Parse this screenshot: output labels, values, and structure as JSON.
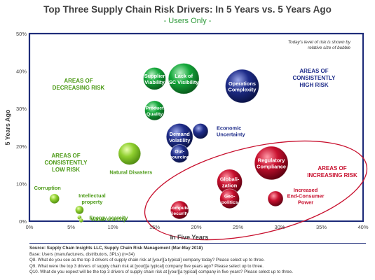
{
  "chart_data": {
    "type": "bubble",
    "title": "Top Three Supply Chain Risk Drivers: In 5 Years vs. 5 Years Ago",
    "subtitle": "- Users Only -",
    "xlabel": "In Five Years",
    "ylabel": "5 Years Ago",
    "xlim": [
      0,
      40
    ],
    "ylim": [
      0,
      50
    ],
    "x_ticks": [
      "0%",
      "5%",
      "10%",
      "15%",
      "20%",
      "25%",
      "30%",
      "35%",
      "40%"
    ],
    "y_ticks": [
      "0%",
      "10%",
      "20%",
      "30%",
      "40%",
      "50%"
    ],
    "grid": false,
    "bubble_note": "Today's level of risk is shown by relative size of bubble",
    "points": [
      {
        "label": "Supplier Viability",
        "x": 15.0,
        "y": 38.0,
        "size": 16,
        "color": "green",
        "label_pos": "inside"
      },
      {
        "label": "Lack of SC Visibility",
        "x": 18.5,
        "y": 38.0,
        "size": 22,
        "color": "green",
        "label_pos": "inside"
      },
      {
        "label": "Product Quality",
        "x": 15.0,
        "y": 29.5,
        "size": 14,
        "color": "green",
        "label_pos": "inside"
      },
      {
        "label": "Operations Complexity",
        "x": 25.5,
        "y": 36.0,
        "size": 24,
        "color": "blue",
        "label_pos": "inside"
      },
      {
        "label": "Demand Volatility",
        "x": 18.0,
        "y": 22.5,
        "size": 19,
        "color": "blue",
        "label_pos": "inside"
      },
      {
        "label": "Out-sourcing",
        "x": 18.0,
        "y": 18.0,
        "size": 13,
        "color": "blue",
        "label_pos": "inside"
      },
      {
        "label": "Economic Uncertainty",
        "x": 20.5,
        "y": 24.0,
        "size": 11,
        "color": "blue",
        "label_pos": "right"
      },
      {
        "label": "Natural Disasters",
        "x": 12.0,
        "y": 18.0,
        "size": 16,
        "color": "lightgreen",
        "label_pos": "below"
      },
      {
        "label": "Corruption",
        "x": 3.0,
        "y": 6.0,
        "size": 7,
        "color": "lightgreen",
        "label_pos": "above-left"
      },
      {
        "label": "Intellectual property",
        "x": 6.0,
        "y": 3.0,
        "size": 6,
        "color": "lightgreen",
        "label_pos": "above-right"
      },
      {
        "label": "Energy scarcity",
        "x": 6.0,
        "y": 1.0,
        "size": 3,
        "color": "lightgreen",
        "label_pos": "right"
      },
      {
        "label": "Water scarcity",
        "x": 6.2,
        "y": 0.2,
        "size": 3,
        "color": "lightgreen",
        "label_pos": "right"
      },
      {
        "label": "Regulatory Compliance",
        "x": 29.0,
        "y": 15.5,
        "size": 24,
        "color": "red",
        "label_pos": "inside"
      },
      {
        "label": "Globalization",
        "x": 24.0,
        "y": 10.5,
        "size": 18,
        "color": "red",
        "label_pos": "inside"
      },
      {
        "label": "Geo-politics",
        "x": 24.0,
        "y": 6.0,
        "size": 14,
        "color": "red",
        "label_pos": "inside"
      },
      {
        "label": "Computer Security",
        "x": 18.0,
        "y": 3.0,
        "size": 13,
        "color": "red",
        "label_pos": "inside"
      },
      {
        "label": "Increased End-Consumer Power",
        "x": 29.5,
        "y": 6.0,
        "size": 11,
        "color": "red",
        "label_pos": "right"
      }
    ],
    "annotations": [
      {
        "text": "AREAS OF DECREASING RISK",
        "color": "green"
      },
      {
        "text": "AREAS OF CONSISTENTLY HIGH RISK",
        "color": "blue"
      },
      {
        "text": "AREAS OF CONSISTENTLY LOW RISK",
        "color": "green"
      },
      {
        "text": "AREAS OF INCREASING RISK",
        "color": "red"
      }
    ],
    "colors": {
      "green": "#14a83a",
      "lightgreen": "#8fcf2f",
      "blue": "#1f2d8a",
      "red": "#c8102e",
      "frame": "#1f2d7a",
      "label_green": "#4c9a16",
      "label_blue": "#1f2d8a",
      "label_red": "#c8102e"
    }
  },
  "footnote": {
    "source": "Source:  Supply Chain Insights LLC, Supply Chain Risk Management (Mar-May 2018)",
    "lines": [
      "Base:  Users (manufacturers, distributors, 3PLs) (n=34)",
      "Q8. What do you see as the top 3 drivers of supply chain risk at [your][a typical] company today?  Please select up to three.",
      "Q9. What were the top 3 drivers of supply chain risk at [your][a typical] company five years ago?  Please select up to three.",
      "Q10. What do you expect will be the top 3 drivers of supply chain risk at [your][a typical] company in five years?  Please select up to three."
    ]
  }
}
